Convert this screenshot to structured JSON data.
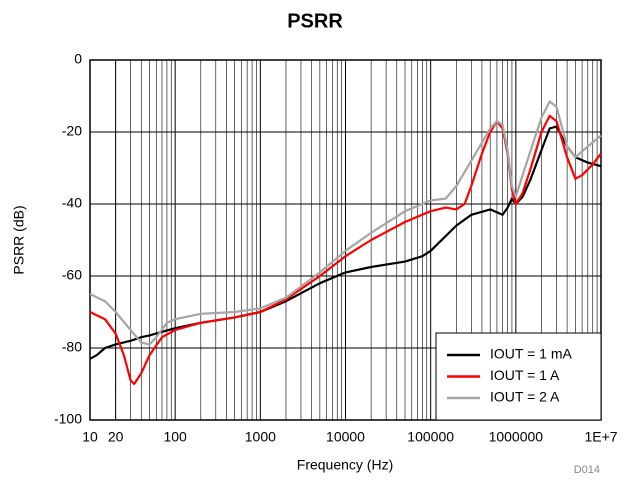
{
  "chart_data": {
    "type": "line",
    "title": "PSRR",
    "xlabel": "Frequency (Hz)",
    "ylabel": "PSRR (dB)",
    "annotation": "D014",
    "log_x": true,
    "grid": true,
    "minor_grid": true,
    "legend": "lower right",
    "xlim": [
      10,
      10000000
    ],
    "ylim": [
      -100,
      0
    ],
    "xticks": [
      10,
      20,
      100,
      1000,
      10000,
      100000,
      1000000,
      {
        "value": 10000000,
        "label": "1E+7"
      }
    ],
    "yticks": [
      0,
      -20,
      -40,
      -60,
      -80,
      -100
    ],
    "series": [
      {
        "name": "IOUT = 1 mA",
        "color": "#000000",
        "x": [
          10,
          12,
          15,
          20,
          30,
          40,
          50,
          70,
          100,
          200,
          500,
          1000,
          2000,
          5000,
          10000,
          20000,
          50000,
          80000,
          100000,
          200000,
          300000,
          500000,
          700000,
          800000,
          900000,
          1000000,
          1200000,
          1500000,
          2000000,
          2500000,
          3000000,
          4000000,
          5000000,
          7000000,
          10000000
        ],
        "values": [
          -83,
          -82,
          -80,
          -79,
          -78,
          -77,
          -76.5,
          -75.5,
          -74.5,
          -73,
          -71.5,
          -70,
          -67,
          -62,
          -59,
          -57.5,
          -56,
          -54.5,
          -53,
          -46,
          -43,
          -41.5,
          -43,
          -41,
          -38.5,
          -40,
          -38,
          -33,
          -25,
          -19,
          -18.5,
          -24,
          -27,
          -28.5,
          -29.5
        ]
      },
      {
        "name": "IOUT = 1 A",
        "color": "#ff0000",
        "x": [
          10,
          15,
          20,
          25,
          30,
          33,
          40,
          50,
          70,
          100,
          200,
          500,
          1000,
          2000,
          5000,
          10000,
          20000,
          50000,
          100000,
          150000,
          200000,
          250000,
          300000,
          400000,
          500000,
          600000,
          700000,
          800000,
          900000,
          1000000,
          1200000,
          1500000,
          2000000,
          2500000,
          3000000,
          4000000,
          5000000,
          6000000,
          8000000,
          10000000
        ],
        "values": [
          -70,
          -72,
          -76,
          -82,
          -89,
          -90,
          -87,
          -82,
          -77,
          -75,
          -73,
          -71.5,
          -70,
          -66.5,
          -60,
          -54.5,
          -50,
          -45,
          -42,
          -41,
          -41.5,
          -40,
          -35,
          -26,
          -20,
          -17,
          -19,
          -26,
          -36,
          -40,
          -37,
          -30,
          -20,
          -15.5,
          -17,
          -27,
          -33,
          -32,
          -29,
          -26
        ]
      },
      {
        "name": "IOUT = 2 A",
        "color": "#a6a6a6",
        "x": [
          10,
          15,
          20,
          30,
          40,
          50,
          60,
          80,
          100,
          200,
          500,
          1000,
          2000,
          5000,
          10000,
          20000,
          50000,
          100000,
          150000,
          200000,
          300000,
          500000,
          600000,
          700000,
          800000,
          900000,
          1000000,
          1200000,
          1500000,
          2000000,
          2500000,
          3000000,
          4000000,
          5000000,
          7000000,
          10000000
        ],
        "values": [
          -65,
          -67,
          -70,
          -75,
          -78.5,
          -79,
          -77,
          -73,
          -72,
          -70.5,
          -70,
          -69,
          -66,
          -59,
          -53,
          -48,
          -42,
          -39,
          -38.5,
          -35,
          -28,
          -19,
          -17,
          -18,
          -25,
          -35,
          -38,
          -32,
          -25,
          -16,
          -11.5,
          -13,
          -24,
          -27,
          -24,
          -21
        ]
      }
    ]
  }
}
